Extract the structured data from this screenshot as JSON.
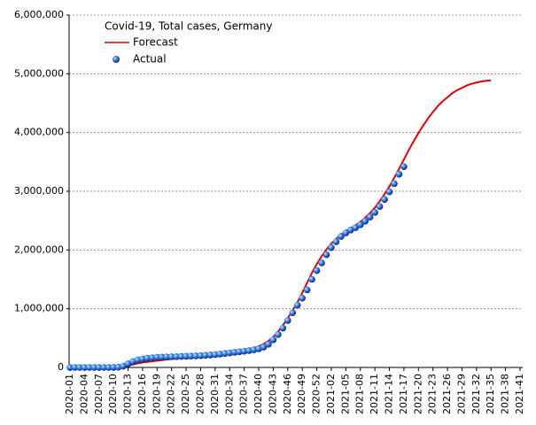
{
  "chart_data": {
    "type": "line",
    "title": "Covid-19, Total cases, Germany",
    "categories": [
      "2020-01",
      null,
      null,
      "2020-04",
      null,
      null,
      "2020-07",
      null,
      null,
      "2020-10",
      null,
      null,
      "2020-13",
      null,
      null,
      "2020-16",
      null,
      null,
      "2020-19",
      null,
      null,
      "2020-22",
      null,
      null,
      "2020-25",
      null,
      null,
      "2020-28",
      null,
      null,
      "2020-31",
      null,
      null,
      "2020-34",
      null,
      null,
      "2020-37",
      null,
      null,
      "2020-40",
      null,
      null,
      "2020-43",
      null,
      null,
      "2020-46",
      null,
      null,
      "2020-49",
      null,
      null,
      "2020-52",
      null,
      null,
      "2021-02",
      null,
      null,
      "2021-05",
      null,
      null,
      "2021-08",
      null,
      null,
      "2021-11",
      null,
      null,
      "2021-14",
      null,
      null,
      "2021-17",
      null,
      null,
      "2021-20",
      null,
      null,
      "2021-23",
      null,
      null,
      "2021-26",
      null,
      null,
      "2021-29",
      null,
      null,
      "2021-32",
      null,
      null,
      "2021-35",
      null,
      null,
      "2021-38",
      null,
      null,
      "2021-41"
    ],
    "series": [
      {
        "name": "Forecast",
        "color": "#e00000",
        "style": "line",
        "values": [
          0,
          0,
          0,
          0,
          0,
          0,
          0,
          0,
          0,
          0,
          0,
          10000,
          30000,
          50000,
          70000,
          85000,
          95000,
          105000,
          115000,
          125000,
          135000,
          145000,
          155000,
          165000,
          172000,
          180000,
          187000,
          195000,
          203000,
          211000,
          220000,
          230000,
          240000,
          250000,
          262000,
          275000,
          290000,
          308000,
          330000,
          360000,
          400000,
          450000,
          520000,
          610000,
          720000,
          840000,
          970000,
          1110000,
          1270000,
          1440000,
          1610000,
          1760000,
          1890000,
          2010000,
          2110000,
          2190000,
          2260000,
          2320000,
          2370000,
          2420000,
          2480000,
          2550000,
          2630000,
          2720000,
          2830000,
          2950000,
          3080000,
          3230000,
          3380000,
          3540000,
          3700000,
          3850000,
          3990000,
          4120000,
          4240000,
          4350000,
          4450000,
          4530000,
          4600000,
          4670000,
          4720000,
          4760000,
          4800000,
          4830000,
          4850000,
          4870000,
          4880000,
          4890000,
          null,
          null,
          null,
          null,
          null,
          null
        ]
      },
      {
        "name": "Actual",
        "color": "#1f5fd0",
        "style": "markers",
        "values": [
          0,
          0,
          0,
          0,
          0,
          0,
          0,
          0,
          0,
          1000,
          5000,
          22000,
          62000,
          100000,
          127000,
          145000,
          158000,
          166000,
          172000,
          176000,
          179000,
          182000,
          184000,
          187000,
          190000,
          194000,
          197000,
          201000,
          206000,
          212000,
          219000,
          228000,
          238000,
          247000,
          257000,
          266000,
          276000,
          287000,
          300000,
          318000,
          346000,
          394000,
          470000,
          560000,
          670000,
          800000,
          930000,
          1060000,
          1180000,
          1320000,
          1500000,
          1650000,
          1780000,
          1920000,
          2040000,
          2140000,
          2230000,
          2290000,
          2340000,
          2380000,
          2430000,
          2490000,
          2560000,
          2640000,
          2740000,
          2860000,
          2990000,
          3130000,
          3290000,
          3420000,
          null,
          null,
          null,
          null,
          null,
          null,
          null,
          null,
          null,
          null,
          null,
          null,
          null,
          null,
          null,
          null,
          null,
          null,
          null,
          null,
          null,
          null,
          null,
          null
        ]
      }
    ],
    "ylim": [
      0,
      6000000
    ],
    "yticks": [
      0,
      {
        "value": 1000000,
        "label": "1,000,000"
      },
      {
        "value": 2000000,
        "label": "2,000,000"
      },
      {
        "value": 3000000,
        "label": "3,000,000"
      },
      {
        "value": 4000000,
        "label": "4,000,000"
      },
      {
        "value": 5000000,
        "label": "5,000,000"
      },
      {
        "value": 6000000,
        "label": "6,000,000"
      }
    ],
    "grid": true,
    "legend": "top-left"
  }
}
